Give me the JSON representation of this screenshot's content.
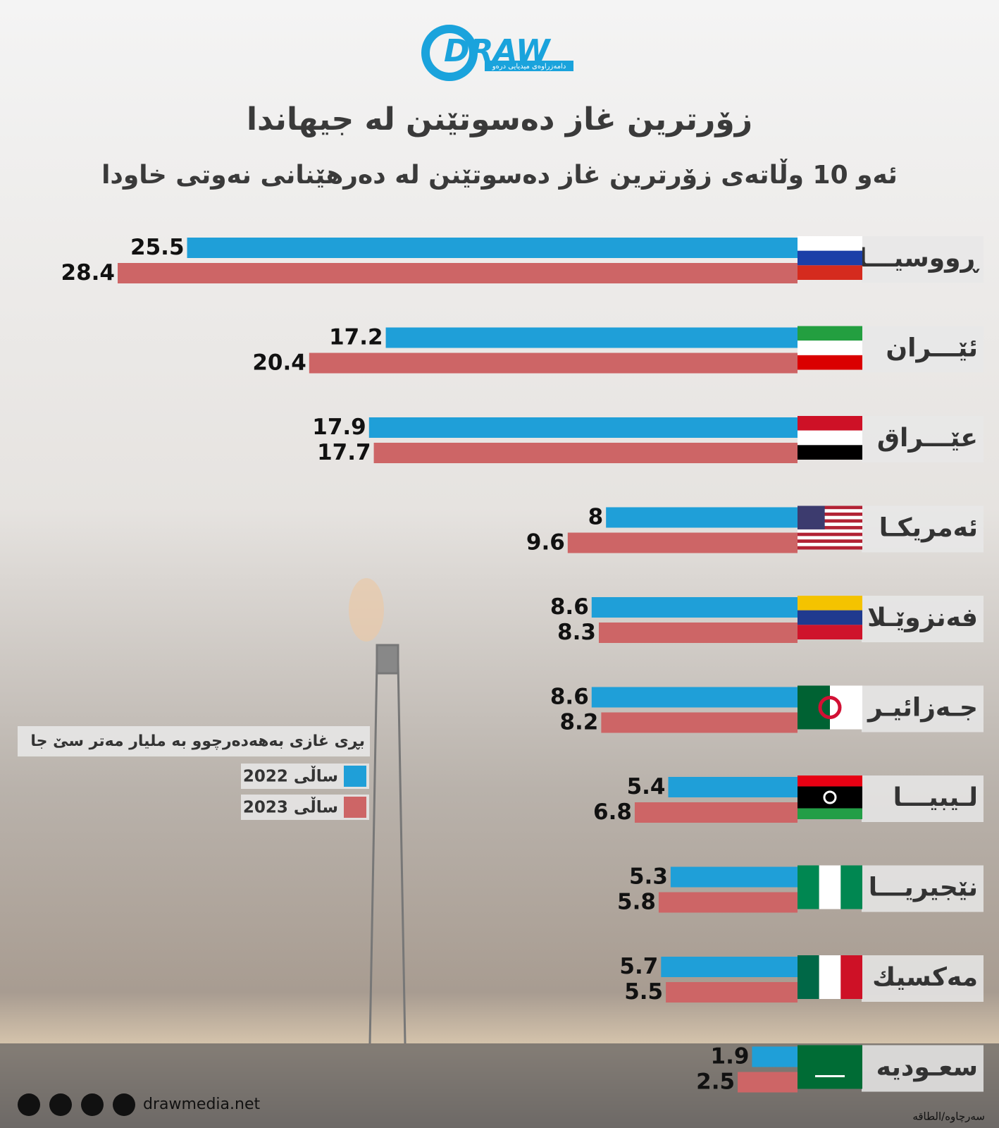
{
  "logo": {
    "name": "DRAW",
    "tagline": "دامەزراوەی میدیایی درەو"
  },
  "chart_data": {
    "type": "bar",
    "orientation": "horizontal",
    "title": "زۆرترین غاز دەسوتێنن لە جیهاندا",
    "subtitle": "ئەو 10 وڵاتەی زۆرترین غاز دەسوتێنن لە دەرهێنانی نەوتی خاودا",
    "legend_title": "بڕی غازی بەهەدەرچوو بە ملیار مەتر سێ جا",
    "categories": [
      "ڕووسیـــا",
      "ئێـــران",
      "عێـــراق",
      "ئەمریکـا",
      "فەنزوێـلا",
      "جـەزائیـر",
      "لـیبیـــا",
      "نێجیریـــا",
      "مەکسیك",
      "سعـودیە"
    ],
    "series": [
      {
        "name": "ساڵی 2022",
        "color": "#1f9fd8",
        "values": [
          25.5,
          17.2,
          17.9,
          8,
          8.6,
          8.6,
          5.4,
          5.3,
          5.7,
          1.9
        ]
      },
      {
        "name": "ساڵی 2023",
        "color": "#cd6566",
        "values": [
          28.4,
          20.4,
          17.7,
          9.6,
          8.3,
          8.2,
          6.8,
          5.8,
          5.5,
          2.5
        ]
      }
    ]
  },
  "footer": {
    "website": "drawmedia.net",
    "source": "سەرچاوە/الطاقە"
  }
}
